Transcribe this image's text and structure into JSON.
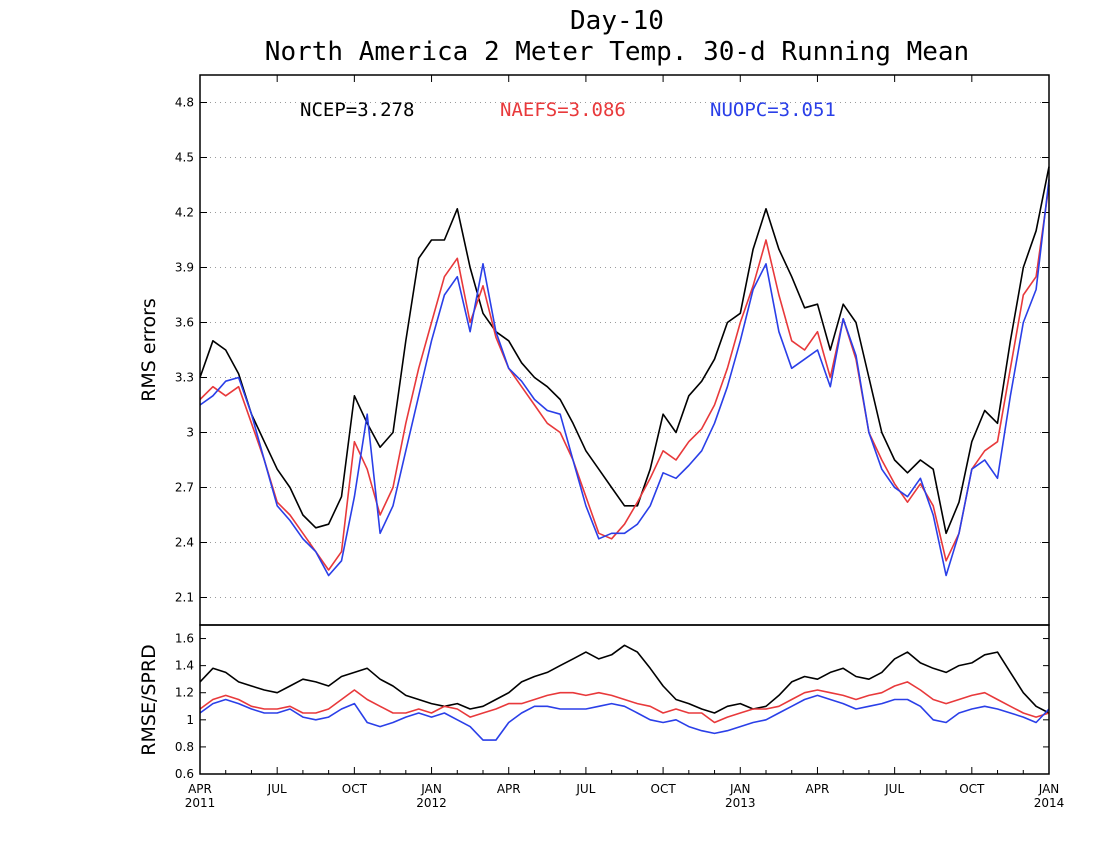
{
  "chart_data": [
    {
      "type": "line",
      "title": "Day-10",
      "subtitle": "North America 2 Meter Temp. 30-d Running Mean",
      "ylabel": "RMS errors",
      "ylim": [
        1.95,
        4.95
      ],
      "yticks": [
        "2.1",
        "2.4",
        "2.7",
        "3",
        "3.3",
        "3.6",
        "3.9",
        "4.2",
        "4.5",
        "4.8"
      ],
      "grid": true,
      "legend_position": "top",
      "series": [
        {
          "name": "NCEP=3.278",
          "color": "#000000",
          "x": [
            0,
            0.5,
            1,
            1.5,
            2,
            2.5,
            3,
            3.5,
            4,
            4.5,
            5,
            5.5,
            6,
            6.5,
            7,
            7.5,
            8,
            8.5,
            9,
            9.5,
            10,
            10.5,
            11,
            11.5,
            12,
            12.5,
            13,
            13.5,
            14,
            14.5,
            15,
            15.5,
            16,
            16.5,
            17,
            17.5,
            18,
            18.5,
            19,
            19.5,
            20,
            20.5,
            21,
            21.5,
            22,
            22.5,
            23,
            23.5,
            24,
            24.5,
            25,
            25.5,
            26,
            26.5,
            27,
            27.5,
            28,
            28.5,
            29,
            29.5,
            30,
            30.5,
            31,
            31.5,
            32,
            32.5,
            33
          ],
          "values": [
            3.3,
            3.5,
            3.45,
            3.32,
            3.1,
            2.95,
            2.8,
            2.7,
            2.55,
            2.48,
            2.5,
            2.65,
            3.2,
            3.05,
            2.92,
            3.0,
            3.5,
            3.95,
            4.05,
            4.05,
            4.22,
            3.9,
            3.65,
            3.55,
            3.5,
            3.38,
            3.3,
            3.25,
            3.18,
            3.05,
            2.9,
            2.8,
            2.7,
            2.6,
            2.6,
            2.8,
            3.1,
            3.0,
            3.2,
            3.28,
            3.4,
            3.6,
            3.65,
            4.0,
            4.22,
            4.0,
            3.85,
            3.68,
            3.7,
            3.45,
            3.7,
            3.6,
            3.3,
            3.0,
            2.85,
            2.78,
            2.85,
            2.8,
            2.45,
            2.62,
            2.95,
            3.12,
            3.05,
            3.5,
            3.9,
            4.1,
            4.45
          ]
        },
        {
          "name": "NAEFS=3.086",
          "color": "#e8393b",
          "x": [
            0,
            0.5,
            1,
            1.5,
            2,
            2.5,
            3,
            3.5,
            4,
            4.5,
            5,
            5.5,
            6,
            6.5,
            7,
            7.5,
            8,
            8.5,
            9,
            9.5,
            10,
            10.5,
            11,
            11.5,
            12,
            12.5,
            13,
            13.5,
            14,
            14.5,
            15,
            15.5,
            16,
            16.5,
            17,
            17.5,
            18,
            18.5,
            19,
            19.5,
            20,
            20.5,
            21,
            21.5,
            22,
            22.5,
            23,
            23.5,
            24,
            24.5,
            25,
            25.5,
            26,
            26.5,
            27,
            27.5,
            28,
            28.5,
            29,
            29.5,
            30,
            30.5,
            31,
            31.5,
            32,
            32.5,
            33
          ],
          "values": [
            3.18,
            3.25,
            3.2,
            3.25,
            3.05,
            2.85,
            2.62,
            2.55,
            2.45,
            2.35,
            2.25,
            2.35,
            2.95,
            2.8,
            2.55,
            2.7,
            3.05,
            3.35,
            3.6,
            3.85,
            3.95,
            3.6,
            3.8,
            3.52,
            3.35,
            3.25,
            3.15,
            3.05,
            3.0,
            2.85,
            2.65,
            2.45,
            2.42,
            2.5,
            2.62,
            2.75,
            2.9,
            2.85,
            2.95,
            3.02,
            3.15,
            3.35,
            3.6,
            3.8,
            4.05,
            3.75,
            3.5,
            3.45,
            3.55,
            3.3,
            3.62,
            3.4,
            3.0,
            2.85,
            2.72,
            2.62,
            2.72,
            2.6,
            2.3,
            2.45,
            2.8,
            2.9,
            2.95,
            3.35,
            3.75,
            3.85,
            4.35
          ]
        },
        {
          "name": "NUOPC=3.051",
          "color": "#2a3fe8",
          "x": [
            0,
            0.5,
            1,
            1.5,
            2,
            2.5,
            3,
            3.5,
            4,
            4.5,
            5,
            5.5,
            6,
            6.5,
            7,
            7.5,
            8,
            8.5,
            9,
            9.5,
            10,
            10.5,
            11,
            11.5,
            12,
            12.5,
            13,
            13.5,
            14,
            14.5,
            15,
            15.5,
            16,
            16.5,
            17,
            17.5,
            18,
            18.5,
            19,
            19.5,
            20,
            20.5,
            21,
            21.5,
            22,
            22.5,
            23,
            23.5,
            24,
            24.5,
            25,
            25.5,
            26,
            26.5,
            27,
            27.5,
            28,
            28.5,
            29,
            29.5,
            30,
            30.5,
            31,
            31.5,
            32,
            32.5,
            33
          ],
          "values": [
            3.15,
            3.2,
            3.28,
            3.3,
            3.1,
            2.85,
            2.6,
            2.52,
            2.42,
            2.35,
            2.22,
            2.3,
            2.65,
            3.1,
            2.45,
            2.6,
            2.9,
            3.2,
            3.5,
            3.75,
            3.85,
            3.55,
            3.92,
            3.55,
            3.35,
            3.28,
            3.18,
            3.12,
            3.1,
            2.85,
            2.6,
            2.42,
            2.45,
            2.45,
            2.5,
            2.6,
            2.78,
            2.75,
            2.82,
            2.9,
            3.05,
            3.25,
            3.5,
            3.78,
            3.92,
            3.55,
            3.35,
            3.4,
            3.45,
            3.25,
            3.62,
            3.42,
            3.0,
            2.8,
            2.7,
            2.65,
            2.75,
            2.55,
            2.22,
            2.45,
            2.8,
            2.85,
            2.75,
            3.2,
            3.6,
            3.78,
            4.38
          ]
        }
      ]
    },
    {
      "type": "line",
      "ylabel": "RMSE/SPRD",
      "ylim": [
        0.6,
        1.7
      ],
      "yticks": [
        "0.6",
        "0.8",
        "1",
        "1.2",
        "1.4",
        "1.6"
      ],
      "grid": false,
      "xtick_labels": [
        {
          "month": "APR",
          "year": "2011"
        },
        {
          "month": "JUL",
          "year": ""
        },
        {
          "month": "OCT",
          "year": ""
        },
        {
          "month": "JAN",
          "year": "2012"
        },
        {
          "month": "APR",
          "year": ""
        },
        {
          "month": "JUL",
          "year": ""
        },
        {
          "month": "OCT",
          "year": ""
        },
        {
          "month": "JAN",
          "year": "2013"
        },
        {
          "month": "APR",
          "year": ""
        },
        {
          "month": "JUL",
          "year": ""
        },
        {
          "month": "OCT",
          "year": ""
        },
        {
          "month": "JAN",
          "year": "2014"
        }
      ],
      "series": [
        {
          "name": "NCEP",
          "color": "#000000",
          "x": [
            0,
            0.5,
            1,
            1.5,
            2,
            2.5,
            3,
            3.5,
            4,
            4.5,
            5,
            5.5,
            6,
            6.5,
            7,
            7.5,
            8,
            8.5,
            9,
            9.5,
            10,
            10.5,
            11,
            11.5,
            12,
            12.5,
            13,
            13.5,
            14,
            14.5,
            15,
            15.5,
            16,
            16.5,
            17,
            17.5,
            18,
            18.5,
            19,
            19.5,
            20,
            20.5,
            21,
            21.5,
            22,
            22.5,
            23,
            23.5,
            24,
            24.5,
            25,
            25.5,
            26,
            26.5,
            27,
            27.5,
            28,
            28.5,
            29,
            29.5,
            30,
            30.5,
            31,
            31.5,
            32,
            32.5,
            33
          ],
          "values": [
            1.28,
            1.38,
            1.35,
            1.28,
            1.25,
            1.22,
            1.2,
            1.25,
            1.3,
            1.28,
            1.25,
            1.32,
            1.35,
            1.38,
            1.3,
            1.25,
            1.18,
            1.15,
            1.12,
            1.1,
            1.12,
            1.08,
            1.1,
            1.15,
            1.2,
            1.28,
            1.32,
            1.35,
            1.4,
            1.45,
            1.5,
            1.45,
            1.48,
            1.55,
            1.5,
            1.38,
            1.25,
            1.15,
            1.12,
            1.08,
            1.05,
            1.1,
            1.12,
            1.08,
            1.1,
            1.18,
            1.28,
            1.32,
            1.3,
            1.35,
            1.38,
            1.32,
            1.3,
            1.35,
            1.45,
            1.5,
            1.42,
            1.38,
            1.35,
            1.4,
            1.42,
            1.48,
            1.5,
            1.35,
            1.2,
            1.1,
            1.05
          ]
        },
        {
          "name": "NAEFS",
          "color": "#e8393b",
          "x": [
            0,
            0.5,
            1,
            1.5,
            2,
            2.5,
            3,
            3.5,
            4,
            4.5,
            5,
            5.5,
            6,
            6.5,
            7,
            7.5,
            8,
            8.5,
            9,
            9.5,
            10,
            10.5,
            11,
            11.5,
            12,
            12.5,
            13,
            13.5,
            14,
            14.5,
            15,
            15.5,
            16,
            16.5,
            17,
            17.5,
            18,
            18.5,
            19,
            19.5,
            20,
            20.5,
            21,
            21.5,
            22,
            22.5,
            23,
            23.5,
            24,
            24.5,
            25,
            25.5,
            26,
            26.5,
            27,
            27.5,
            28,
            28.5,
            29,
            29.5,
            30,
            30.5,
            31,
            31.5,
            32,
            32.5,
            33
          ],
          "values": [
            1.08,
            1.15,
            1.18,
            1.15,
            1.1,
            1.08,
            1.08,
            1.1,
            1.05,
            1.05,
            1.08,
            1.15,
            1.22,
            1.15,
            1.1,
            1.05,
            1.05,
            1.08,
            1.05,
            1.1,
            1.08,
            1.02,
            1.05,
            1.08,
            1.12,
            1.12,
            1.15,
            1.18,
            1.2,
            1.2,
            1.18,
            1.2,
            1.18,
            1.15,
            1.12,
            1.1,
            1.05,
            1.08,
            1.05,
            1.05,
            0.98,
            1.02,
            1.05,
            1.08,
            1.08,
            1.1,
            1.15,
            1.2,
            1.22,
            1.2,
            1.18,
            1.15,
            1.18,
            1.2,
            1.25,
            1.28,
            1.22,
            1.15,
            1.12,
            1.15,
            1.18,
            1.2,
            1.15,
            1.1,
            1.05,
            1.02,
            1.05
          ]
        },
        {
          "name": "NUOPC",
          "color": "#2a3fe8",
          "x": [
            0,
            0.5,
            1,
            1.5,
            2,
            2.5,
            3,
            3.5,
            4,
            4.5,
            5,
            5.5,
            6,
            6.5,
            7,
            7.5,
            8,
            8.5,
            9,
            9.5,
            10,
            10.5,
            11,
            11.5,
            12,
            12.5,
            13,
            13.5,
            14,
            14.5,
            15,
            15.5,
            16,
            16.5,
            17,
            17.5,
            18,
            18.5,
            19,
            19.5,
            20,
            20.5,
            21,
            21.5,
            22,
            22.5,
            23,
            23.5,
            24,
            24.5,
            25,
            25.5,
            26,
            26.5,
            27,
            27.5,
            28,
            28.5,
            29,
            29.5,
            30,
            30.5,
            31,
            31.5,
            32,
            32.5,
            33
          ],
          "values": [
            1.05,
            1.12,
            1.15,
            1.12,
            1.08,
            1.05,
            1.05,
            1.08,
            1.02,
            1.0,
            1.02,
            1.08,
            1.12,
            0.98,
            0.95,
            0.98,
            1.02,
            1.05,
            1.02,
            1.05,
            1.0,
            0.95,
            0.85,
            0.85,
            0.98,
            1.05,
            1.1,
            1.1,
            1.08,
            1.08,
            1.08,
            1.1,
            1.12,
            1.1,
            1.05,
            1.0,
            0.98,
            1.0,
            0.95,
            0.92,
            0.9,
            0.92,
            0.95,
            0.98,
            1.0,
            1.05,
            1.1,
            1.15,
            1.18,
            1.15,
            1.12,
            1.08,
            1.1,
            1.12,
            1.15,
            1.15,
            1.1,
            1.0,
            0.98,
            1.05,
            1.08,
            1.1,
            1.08,
            1.05,
            1.02,
            0.98,
            1.08
          ]
        }
      ]
    }
  ]
}
